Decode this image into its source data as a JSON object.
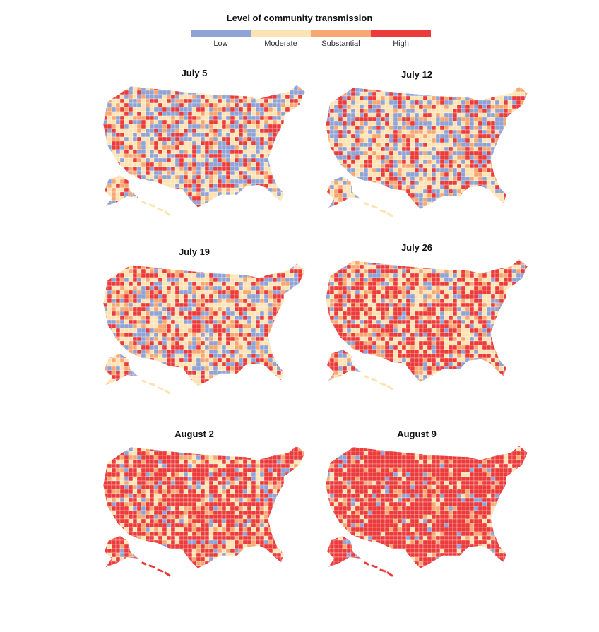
{
  "legend": {
    "title": "Level of community transmission",
    "levels": [
      {
        "label": "Low",
        "color": "#8fa3d6"
      },
      {
        "label": "Moderate",
        "color": "#fde3b3"
      },
      {
        "label": "Substantial",
        "color": "#f7a872"
      },
      {
        "label": "High",
        "color": "#ec3b3b"
      }
    ]
  },
  "maps": [
    {
      "date": "July 5",
      "shares": {
        "low": 0.25,
        "moderate": 0.35,
        "substantial": 0.15,
        "high": 0.25
      }
    },
    {
      "date": "July 12",
      "shares": {
        "low": 0.23,
        "moderate": 0.33,
        "substantial": 0.16,
        "high": 0.28
      }
    },
    {
      "date": "July 19",
      "shares": {
        "low": 0.18,
        "moderate": 0.35,
        "substantial": 0.17,
        "high": 0.3
      }
    },
    {
      "date": "July 26",
      "shares": {
        "low": 0.12,
        "moderate": 0.25,
        "substantial": 0.18,
        "high": 0.45
      }
    },
    {
      "date": "August 2",
      "shares": {
        "low": 0.06,
        "moderate": 0.15,
        "substantial": 0.17,
        "high": 0.62
      }
    },
    {
      "date": "August 9",
      "shares": {
        "low": 0.04,
        "moderate": 0.09,
        "substantial": 0.1,
        "high": 0.77
      }
    }
  ]
}
